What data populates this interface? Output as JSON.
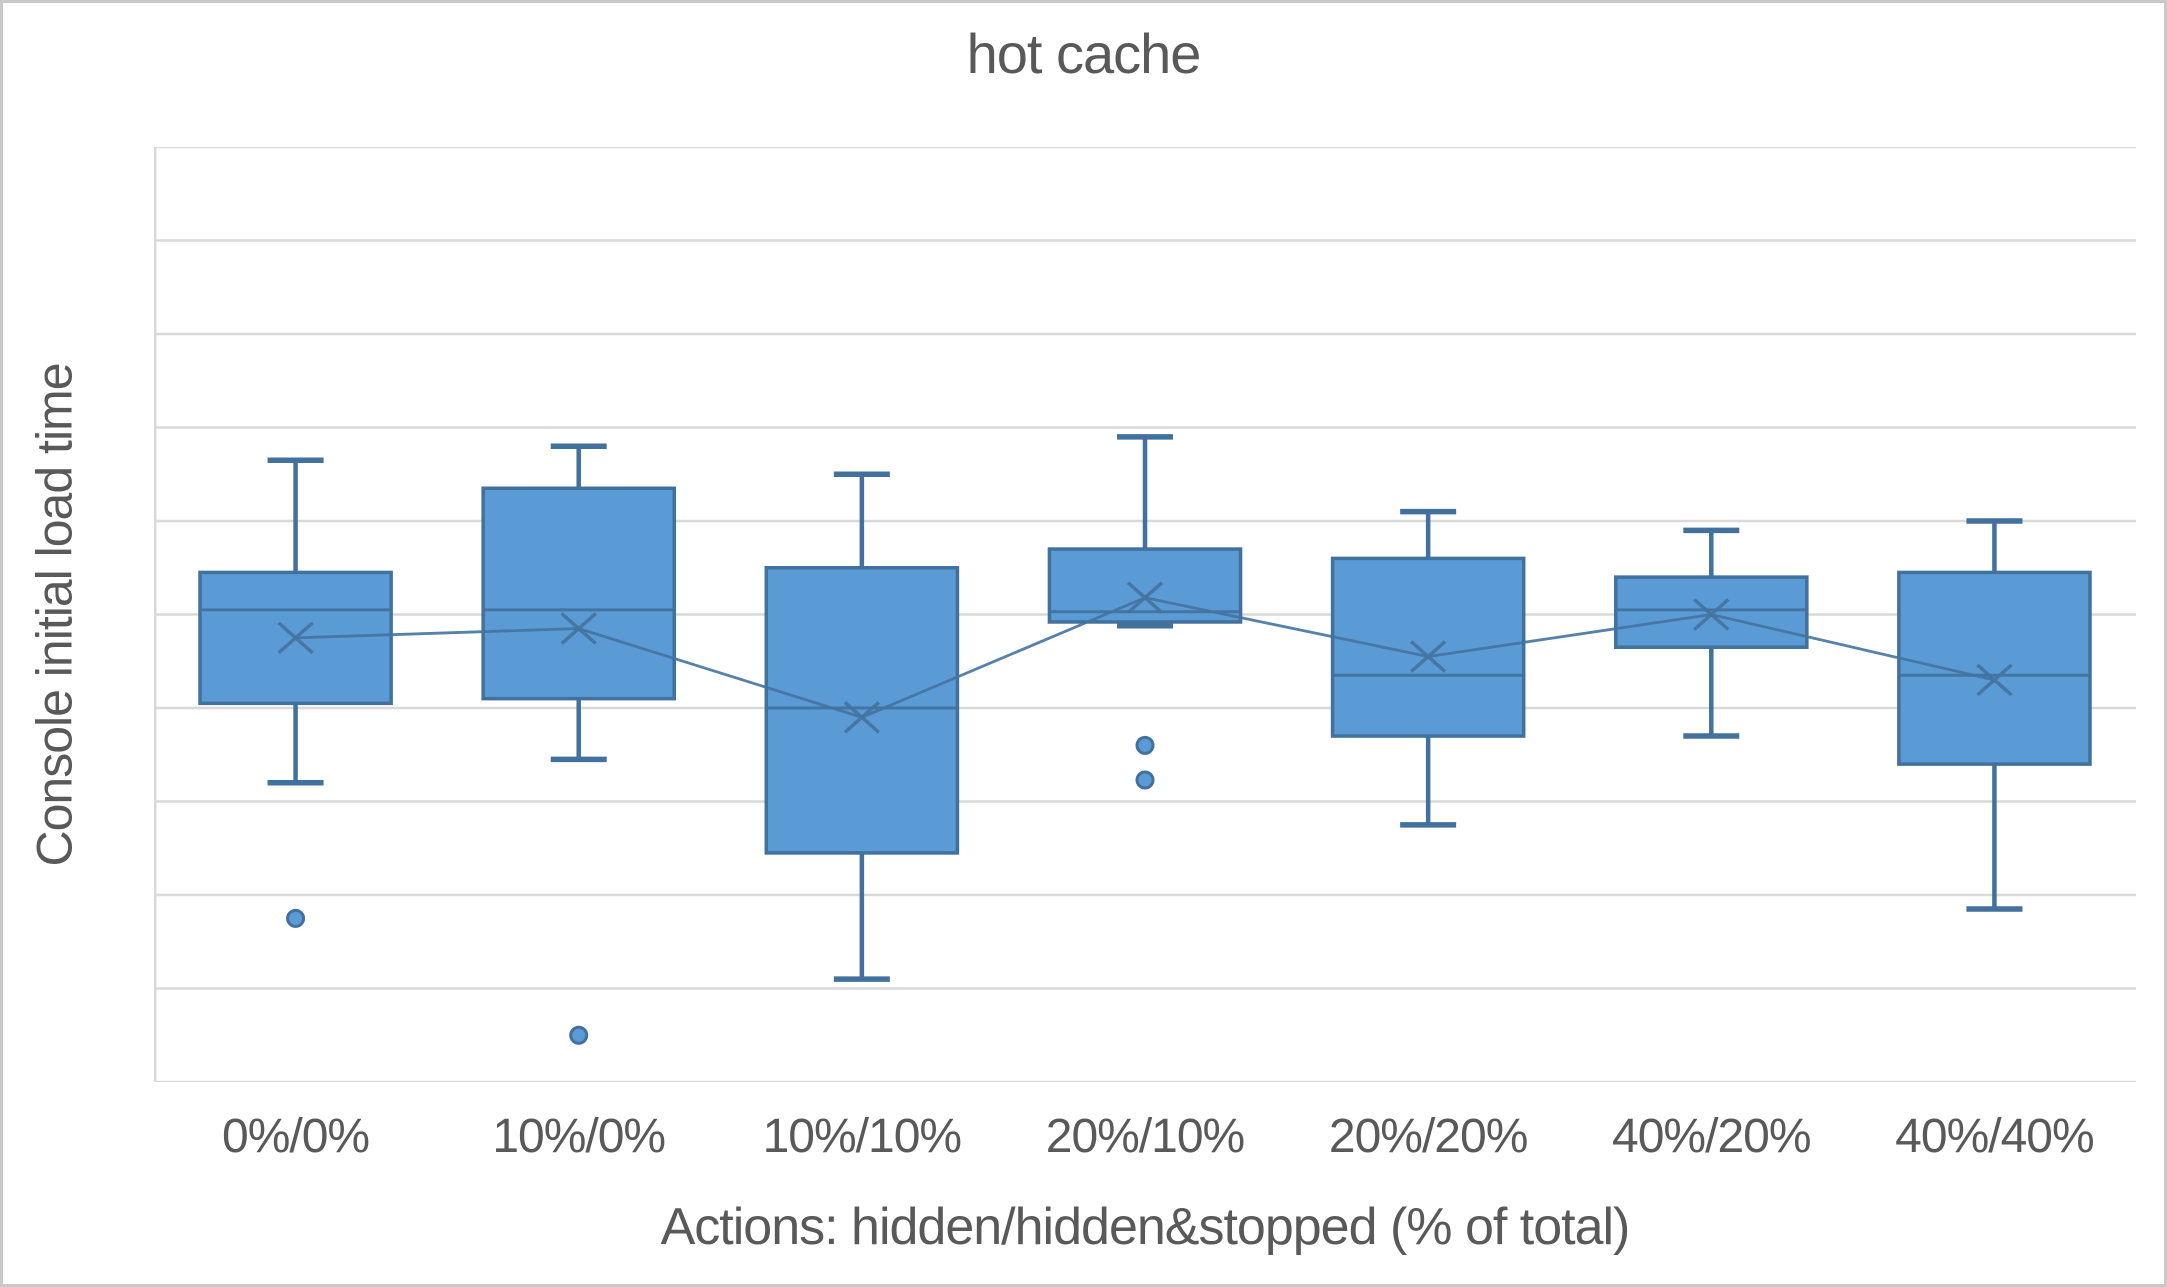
{
  "chart_data": {
    "type": "box",
    "title": "hot cache",
    "xlabel": "Actions: hidden/hidden&stopped (% of total)",
    "ylabel": "Console initial load time",
    "categories": [
      "0%/0%",
      "10%/0%",
      "10%/10%",
      "20%/10%",
      "20%/20%",
      "40%/20%",
      "40%/40%"
    ],
    "ylim": [
      0,
      10
    ],
    "gridline_step": 1,
    "y_tick_labels_visible": false,
    "legend_position": "none",
    "grid": "horizontal",
    "mean_markers_connected": true,
    "series": [
      {
        "name": "Console initial load time",
        "boxes": [
          {
            "category": "0%/0%",
            "min": 3.2,
            "q1": 4.05,
            "median": 5.05,
            "q3": 5.45,
            "max": 6.65,
            "mean": 4.75,
            "outliers": [
              1.75
            ]
          },
          {
            "category": "10%/0%",
            "min": 3.45,
            "q1": 4.1,
            "median": 5.05,
            "q3": 6.35,
            "max": 6.8,
            "mean": 4.85,
            "outliers": [
              0.5
            ]
          },
          {
            "category": "10%/10%",
            "min": 1.1,
            "q1": 2.45,
            "median": 4.0,
            "q3": 5.5,
            "max": 6.5,
            "mean": 3.9,
            "outliers": []
          },
          {
            "category": "20%/10%",
            "min": 4.88,
            "q1": 4.92,
            "median": 5.03,
            "q3": 5.7,
            "max": 6.9,
            "mean": 5.18,
            "outliers": [
              3.6,
              3.23
            ]
          },
          {
            "category": "20%/20%",
            "min": 2.75,
            "q1": 3.7,
            "median": 4.35,
            "q3": 5.6,
            "max": 6.1,
            "mean": 4.55,
            "outliers": []
          },
          {
            "category": "40%/20%",
            "min": 3.7,
            "q1": 4.65,
            "median": 5.05,
            "q3": 5.4,
            "max": 5.9,
            "mean": 5.0,
            "outliers": []
          },
          {
            "category": "40%/40%",
            "min": 1.85,
            "q1": 3.4,
            "median": 4.35,
            "q3": 5.45,
            "max": 6.0,
            "mean": 4.3,
            "outliers": []
          }
        ]
      }
    ],
    "colors": {
      "box_fill": "#5B9BD5",
      "box_line": "#41719C",
      "mean_line": "#44739E",
      "gridline": "#D9D9D9",
      "text": "#595959",
      "frame_border": "#C9C9C9",
      "background": "#FFFFFF"
    }
  }
}
